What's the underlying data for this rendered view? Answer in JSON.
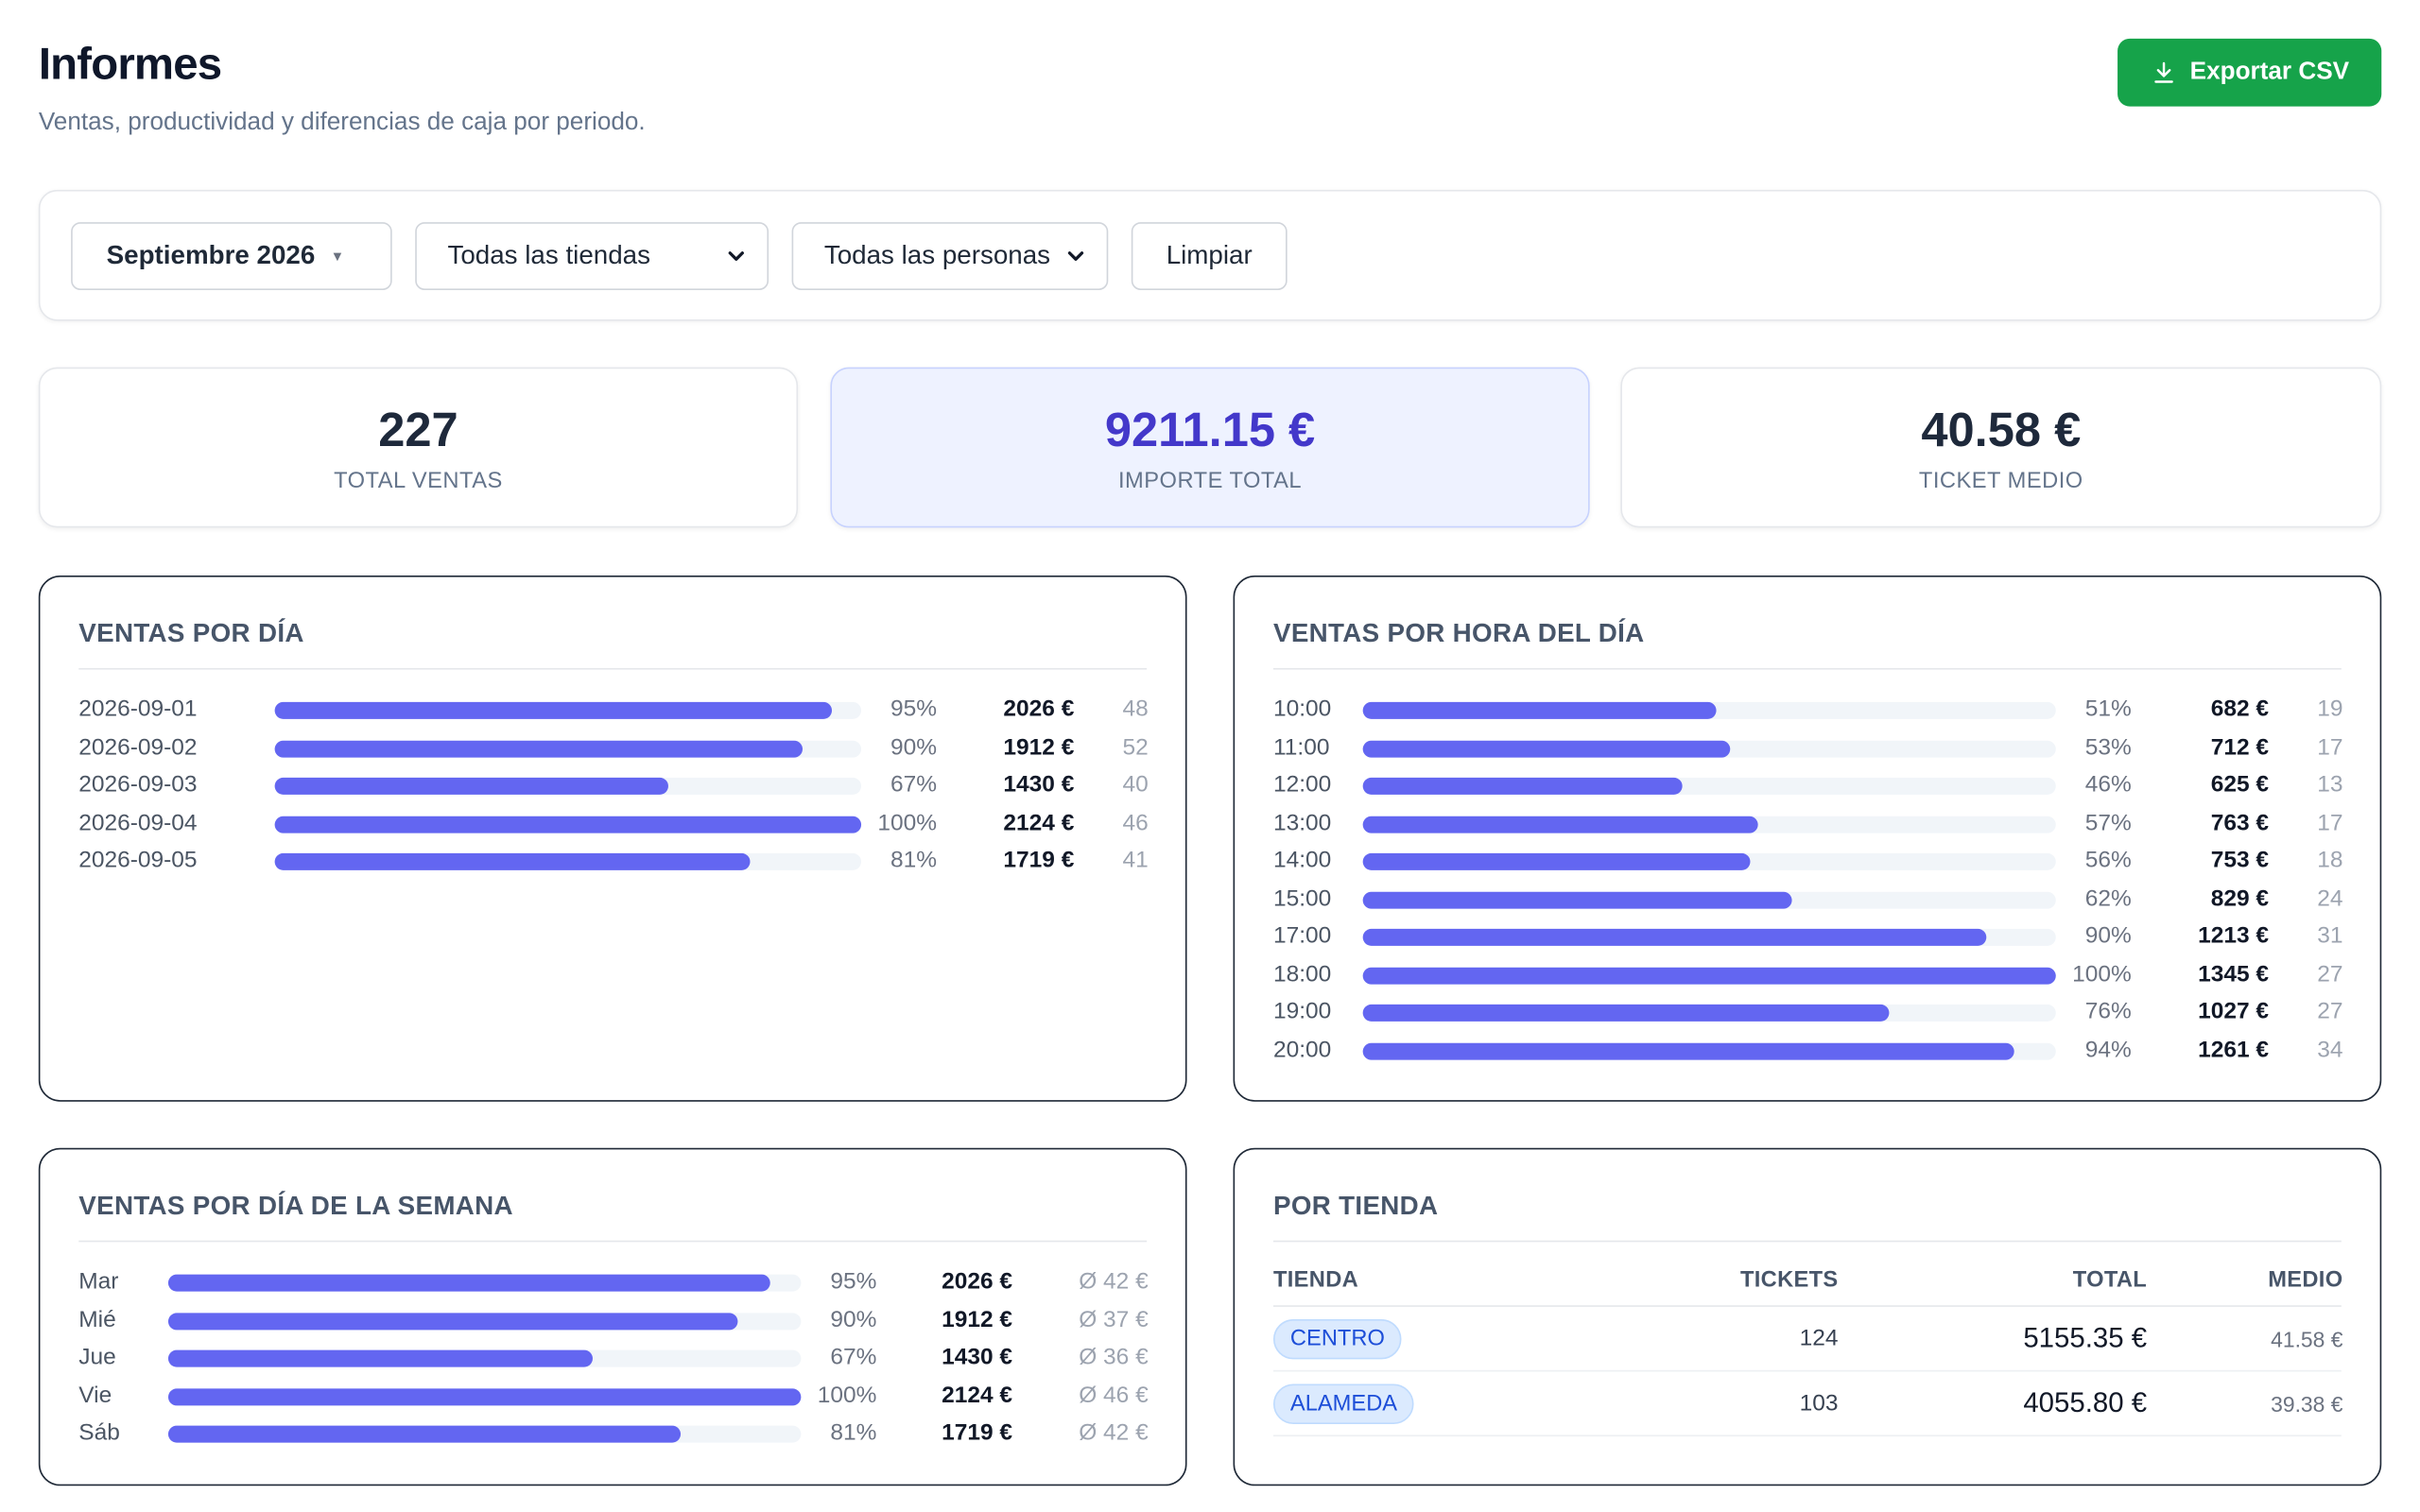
{
  "header": {
    "title": "Informes",
    "subtitle": "Ventas, productividad y diferencias de caja por periodo.",
    "export_label": "Exportar CSV"
  },
  "filters": {
    "month": "Septiembre 2026",
    "store": "Todas las tiendas",
    "person": "Todas las personas",
    "clear_label": "Limpiar"
  },
  "kpis": [
    {
      "value": "227",
      "label": "TOTAL VENTAS"
    },
    {
      "value": "9211.15 €",
      "label": "IMPORTE TOTAL"
    },
    {
      "value": "40.58 €",
      "label": "TICKET MEDIO"
    }
  ],
  "colors": {
    "accent": "#6366f1",
    "export": "#16a34a",
    "highlight_bg": "#eef2ff",
    "highlight_text": "#4338ca"
  },
  "by_day": {
    "title": "VENTAS POR DÍA",
    "rows": [
      {
        "label": "2026-09-01",
        "pct": "95%",
        "fraction": 0.95,
        "amount": "2026 €",
        "count": "48"
      },
      {
        "label": "2026-09-02",
        "pct": "90%",
        "fraction": 0.9,
        "amount": "1912 €",
        "count": "52"
      },
      {
        "label": "2026-09-03",
        "pct": "67%",
        "fraction": 0.67,
        "amount": "1430 €",
        "count": "40"
      },
      {
        "label": "2026-09-04",
        "pct": "100%",
        "fraction": 1.0,
        "amount": "2124 €",
        "count": "46"
      },
      {
        "label": "2026-09-05",
        "pct": "81%",
        "fraction": 0.81,
        "amount": "1719 €",
        "count": "41"
      }
    ]
  },
  "by_hour": {
    "title": "VENTAS POR HORA DEL DÍA",
    "rows": [
      {
        "label": "10:00",
        "pct": "51%",
        "fraction": 0.51,
        "amount": "682 €",
        "count": "19"
      },
      {
        "label": "11:00",
        "pct": "53%",
        "fraction": 0.53,
        "amount": "712 €",
        "count": "17"
      },
      {
        "label": "12:00",
        "pct": "46%",
        "fraction": 0.46,
        "amount": "625 €",
        "count": "13"
      },
      {
        "label": "13:00",
        "pct": "57%",
        "fraction": 0.57,
        "amount": "763 €",
        "count": "17"
      },
      {
        "label": "14:00",
        "pct": "56%",
        "fraction": 0.56,
        "amount": "753 €",
        "count": "18"
      },
      {
        "label": "15:00",
        "pct": "62%",
        "fraction": 0.62,
        "amount": "829 €",
        "count": "24"
      },
      {
        "label": "17:00",
        "pct": "90%",
        "fraction": 0.9,
        "amount": "1213 €",
        "count": "31"
      },
      {
        "label": "18:00",
        "pct": "100%",
        "fraction": 1.0,
        "amount": "1345 €",
        "count": "27"
      },
      {
        "label": "19:00",
        "pct": "76%",
        "fraction": 0.76,
        "amount": "1027 €",
        "count": "27"
      },
      {
        "label": "20:00",
        "pct": "94%",
        "fraction": 0.94,
        "amount": "1261 €",
        "count": "34"
      }
    ]
  },
  "by_weekday": {
    "title": "VENTAS POR DÍA DE LA SEMANA",
    "rows": [
      {
        "label": "Mar",
        "pct": "95%",
        "fraction": 0.95,
        "amount": "2026 €",
        "avg": "Ø 42 €"
      },
      {
        "label": "Mié",
        "pct": "90%",
        "fraction": 0.9,
        "amount": "1912 €",
        "avg": "Ø 37 €"
      },
      {
        "label": "Jue",
        "pct": "67%",
        "fraction": 0.67,
        "amount": "1430 €",
        "avg": "Ø 36 €"
      },
      {
        "label": "Vie",
        "pct": "100%",
        "fraction": 1.0,
        "amount": "2124 €",
        "avg": "Ø 46 €"
      },
      {
        "label": "Sáb",
        "pct": "81%",
        "fraction": 0.81,
        "amount": "1719 €",
        "avg": "Ø 42 €"
      }
    ]
  },
  "by_store": {
    "title": "POR TIENDA",
    "headers": {
      "store": "TIENDA",
      "tickets": "TICKETS",
      "total": "TOTAL",
      "avg": "MEDIO"
    },
    "rows": [
      {
        "store": "CENTRO",
        "tickets": "124",
        "total": "5155.35 €",
        "avg": "41.58 €"
      },
      {
        "store": "ALAMEDA",
        "tickets": "103",
        "total": "4055.80 €",
        "avg": "39.38 €"
      }
    ]
  }
}
